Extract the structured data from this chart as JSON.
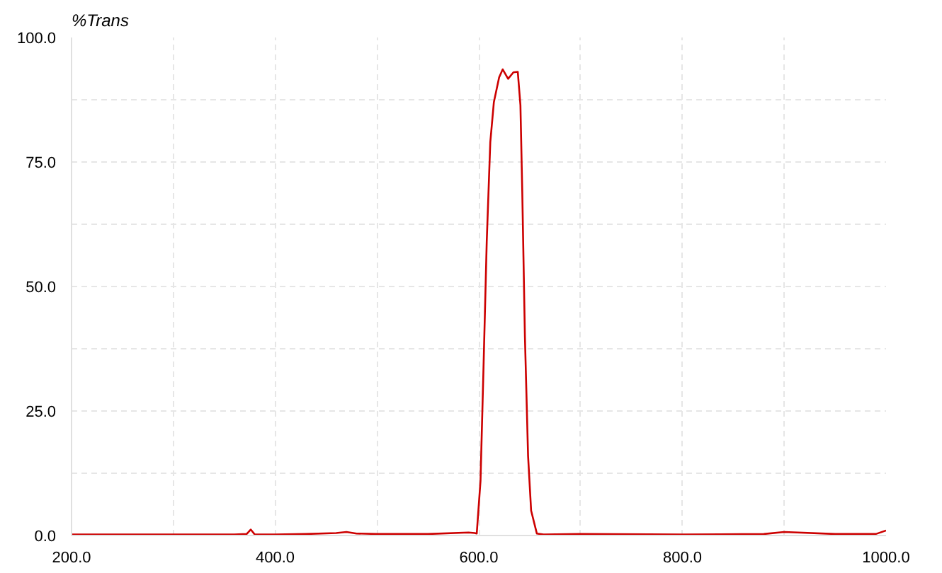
{
  "chart_data": {
    "type": "line",
    "ylabel": "%Trans",
    "x": [
      200,
      300,
      360,
      372,
      376,
      380,
      400,
      430,
      460,
      470,
      480,
      500,
      550,
      590,
      596,
      598,
      601.7,
      604.8,
      607.8,
      611.3,
      614.8,
      620,
      623.5,
      628.8,
      634,
      638.3,
      640.9,
      642.7,
      645.3,
      648.4,
      651.4,
      657,
      663.7,
      700,
      800,
      880,
      900,
      950,
      990,
      1000
    ],
    "series": [
      {
        "color": "#cc0000",
        "values": [
          0.2,
          0.2,
          0.2,
          0.3,
          1.2,
          0.2,
          0.2,
          0.3,
          0.5,
          0.7,
          0.4,
          0.3,
          0.3,
          0.6,
          0.5,
          0.4,
          11,
          35,
          59,
          79,
          87,
          92,
          93.6,
          91.7,
          93,
          93.1,
          86.4,
          69,
          40,
          16,
          5,
          0.4,
          0.2,
          0.3,
          0.2,
          0.3,
          0.7,
          0.3,
          0.3,
          1.0
        ]
      }
    ],
    "xlim": [
      200,
      1000
    ],
    "ylim": [
      0,
      100
    ],
    "xticks": [
      {
        "value": 200,
        "label": "200.0"
      },
      {
        "value": 300,
        "label": null
      },
      {
        "value": 400,
        "label": "400.0"
      },
      {
        "value": 500,
        "label": null
      },
      {
        "value": 600,
        "label": "600.0"
      },
      {
        "value": 700,
        "label": null
      },
      {
        "value": 800,
        "label": "800.0"
      },
      {
        "value": 900,
        "label": null
      },
      {
        "value": 1000,
        "label": "1000.0"
      }
    ],
    "yticks": [
      {
        "value": 0,
        "label": "0.0"
      },
      {
        "value": 12.5,
        "label": null
      },
      {
        "value": 25,
        "label": "25.0"
      },
      {
        "value": 37.5,
        "label": null
      },
      {
        "value": 50,
        "label": "50.0"
      },
      {
        "value": 62.5,
        "label": null
      },
      {
        "value": 75,
        "label": "75.0"
      },
      {
        "value": 87.5,
        "label": null
      },
      {
        "value": 100,
        "label": "100.0"
      }
    ],
    "grid": true,
    "line_style": "solid",
    "marker": "none"
  }
}
